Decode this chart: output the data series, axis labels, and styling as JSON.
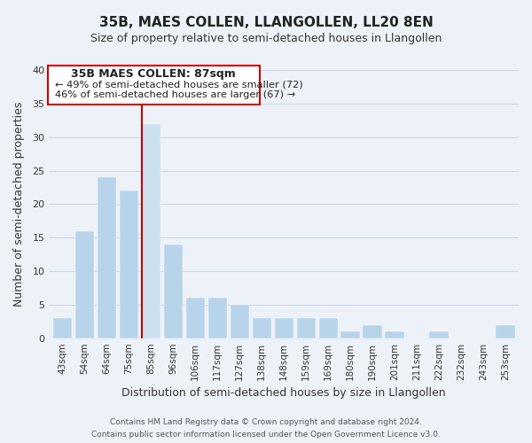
{
  "title": "35B, MAES COLLEN, LLANGOLLEN, LL20 8EN",
  "subtitle": "Size of property relative to semi-detached houses in Llangollen",
  "xlabel": "Distribution of semi-detached houses by size in Llangollen",
  "ylabel": "Number of semi-detached properties",
  "categories": [
    "43sqm",
    "54sqm",
    "64sqm",
    "75sqm",
    "85sqm",
    "96sqm",
    "106sqm",
    "117sqm",
    "127sqm",
    "138sqm",
    "148sqm",
    "159sqm",
    "169sqm",
    "180sqm",
    "190sqm",
    "201sqm",
    "211sqm",
    "222sqm",
    "232sqm",
    "243sqm",
    "253sqm"
  ],
  "values": [
    3,
    16,
    24,
    22,
    32,
    14,
    6,
    6,
    5,
    3,
    3,
    3,
    3,
    1,
    2,
    1,
    0,
    1,
    0,
    0,
    2
  ],
  "bar_color_normal": "#b8d4ea",
  "bar_color_highlight": "#cce0f0",
  "highlight_bar_index": 4,
  "highlight_line_color": "#cc0000",
  "ylim": [
    0,
    40
  ],
  "yticks": [
    0,
    5,
    10,
    15,
    20,
    25,
    30,
    35,
    40
  ],
  "annotation_title": "35B MAES COLLEN: 87sqm",
  "annotation_line1": "← 49% of semi-detached houses are smaller (72)",
  "annotation_line2": "46% of semi-detached houses are larger (67) →",
  "annotation_box_color": "#ffffff",
  "annotation_box_edge": "#cc0000",
  "footer_line1": "Contains HM Land Registry data © Crown copyright and database right 2024.",
  "footer_line2": "Contains public sector information licensed under the Open Government Licence v3.0.",
  "grid_color": "#ccd8e8",
  "background_color": "#edf2f8"
}
